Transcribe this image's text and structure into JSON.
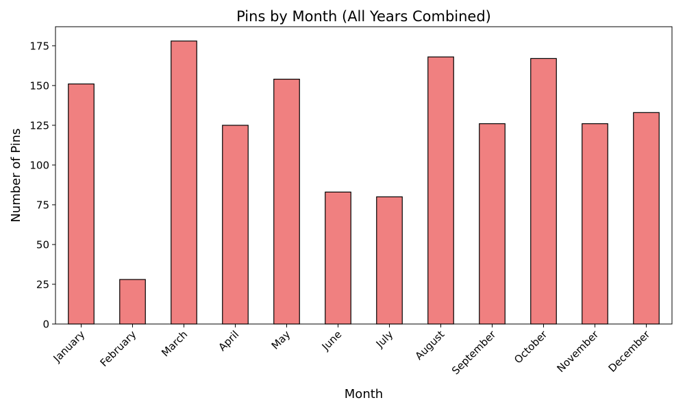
{
  "chart_data": {
    "type": "bar",
    "title": "Pins by Month (All Years Combined)",
    "xlabel": "Month",
    "ylabel": "Number of Pins",
    "categories": [
      "January",
      "February",
      "March",
      "April",
      "May",
      "June",
      "July",
      "August",
      "September",
      "October",
      "November",
      "December"
    ],
    "values": [
      151,
      28,
      178,
      125,
      154,
      83,
      80,
      168,
      126,
      167,
      126,
      133
    ],
    "ylim": [
      0,
      187
    ],
    "yticks": [
      0,
      25,
      50,
      75,
      100,
      125,
      150,
      175
    ],
    "grid": false,
    "legend": "none",
    "bar_color": "#f08080",
    "bar_edge_color": "#000000",
    "x_tick_rotation_deg": 45
  }
}
